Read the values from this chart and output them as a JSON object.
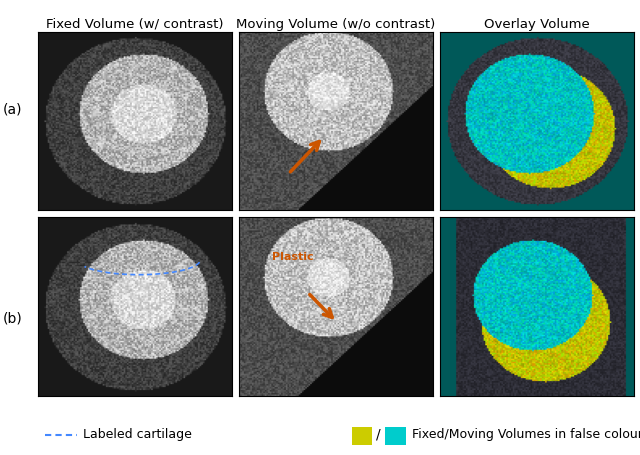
{
  "title_row_labels": [
    "Fixed Volume (w/ contrast)",
    "Moving Volume (w/o contrast)",
    "Overlay Volume"
  ],
  "row_labels": [
    "(a)",
    "(b)"
  ],
  "col_colors": [
    "#1a1a1a",
    "#2a2a2a",
    "#006060"
  ],
  "arrow_color": "#cc5500",
  "arrow_label": "Plastic",
  "cartilage_label": "Labeled cartilage",
  "colour_label": "Fixed/Moving Volumes in false colour scale",
  "yellow_color": "#cccc00",
  "cyan_color": "#00cccc",
  "blue_dot_color": "#4488ff",
  "figure_bg": "#ffffff",
  "legend_fontsize": 9,
  "title_fontsize": 9.5
}
